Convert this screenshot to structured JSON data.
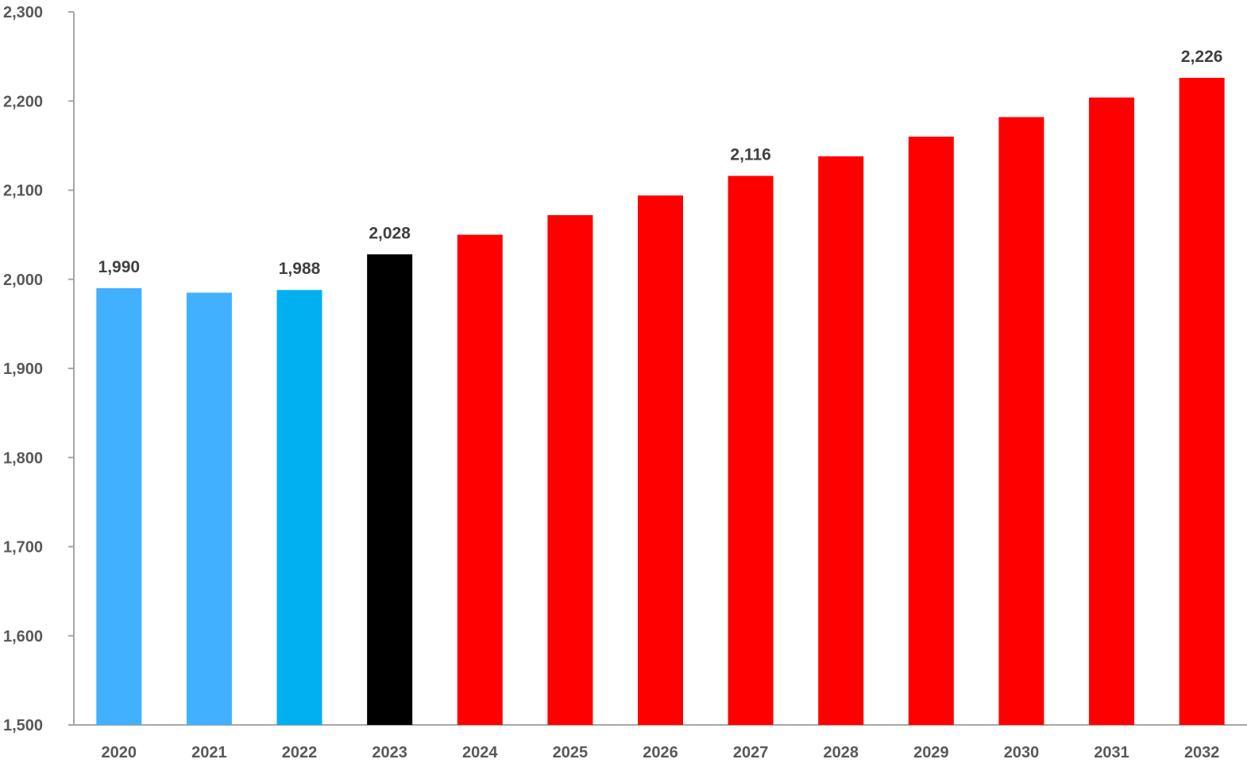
{
  "chart_data": {
    "type": "bar",
    "title": "",
    "xlabel": "",
    "ylabel": "",
    "categories": [
      "2020",
      "2021",
      "2022",
      "2023",
      "2024",
      "2025",
      "2026",
      "2027",
      "2028",
      "2029",
      "2030",
      "2031",
      "2032"
    ],
    "values": [
      1990,
      1985,
      1988,
      2028,
      2050,
      2072,
      2094,
      2116,
      2138,
      2160,
      2182,
      2204,
      2226
    ],
    "bar_colors": [
      "#41b0ff",
      "#41b0ff",
      "#00b0f0",
      "#000000",
      "#ff0000",
      "#ff0000",
      "#ff0000",
      "#ff0000",
      "#ff0000",
      "#ff0000",
      "#ff0000",
      "#ff0000",
      "#ff0000"
    ],
    "data_labels": [
      {
        "category": "2020",
        "text": "1,990"
      },
      {
        "category": "2022",
        "text": "1,988"
      },
      {
        "category": "2023",
        "text": "2,028"
      },
      {
        "category": "2027",
        "text": "2,116"
      },
      {
        "category": "2032",
        "text": "2,226"
      }
    ],
    "ylim": [
      1500,
      2300
    ],
    "y_ticks": [
      1500,
      1600,
      1700,
      1800,
      1900,
      2000,
      2100,
      2200,
      2300
    ],
    "y_tick_labels": [
      "1,500",
      "1,600",
      "1,700",
      "1,800",
      "1,900",
      "2,000",
      "2,100",
      "2,200",
      "2,300"
    ],
    "grid": false,
    "axis_color": "#a6a6a6"
  }
}
